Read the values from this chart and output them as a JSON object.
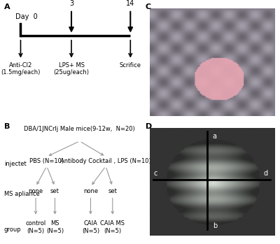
{
  "panel_A_label": "A",
  "panel_B_label": "B",
  "panel_C_label": "C",
  "panel_D_label": "D",
  "timeline_labels": [
    "Day  0",
    "3",
    "14"
  ],
  "arrow_labels_below": [
    "Anti-Cl2\n(1.5mg/each)",
    "LPS+ MS\n(25ug/each)",
    "Scrifice"
  ],
  "tree_title": "DBA/1JNCrlj Male mice(9-12w,  N=20)",
  "injectet_label": "injectet",
  "ms_label": "MS apliance",
  "group_label": "group",
  "pbs_label": "PBS (N=10)",
  "cocktail_label": "Antibody Cocktail , LPS (N=10)",
  "none1": "none",
  "set1": "set",
  "none2": "none",
  "set2": "set",
  "control": "control\n(N=5)",
  "ms_group": "MS\n(N=5)",
  "caia": "CAIA\n(N=5)",
  "caia_ms": "CAIA MS\n(N=5)",
  "bg_color": "#ffffff",
  "text_color": "#000000",
  "line_color": "#000000",
  "gray_line": "#999999"
}
